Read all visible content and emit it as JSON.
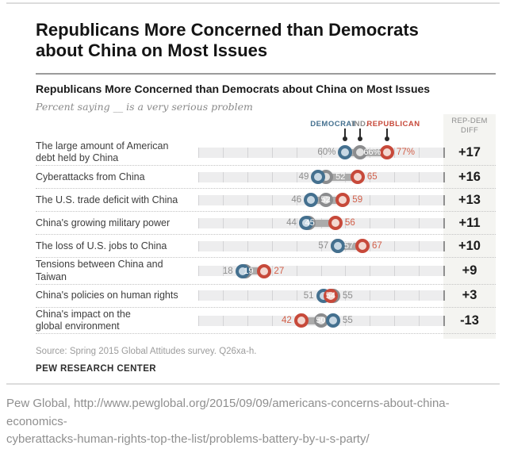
{
  "page": {
    "title": "Republicans More Concerned than Democrats about China on Most Issues",
    "caption_line1": "Pew Global, http://www.pewglobal.org/2015/09/09/americans-concerns-about-china-economics-",
    "caption_line2": "cyberattacks-human-rights-top-the-list/problems-battery-by-u-s-party/"
  },
  "chart": {
    "title": "Republicans More Concerned than Democrats about China on Most Issues",
    "subtitle": "Percent saying __ is a very serious problem",
    "legend": [
      {
        "party": "dem",
        "label": "DEMOCRAT",
        "at": 60
      },
      {
        "party": "ind",
        "label": "IND.",
        "at": 66
      },
      {
        "party": "rep",
        "label": "REPUBLICAN",
        "at": 77
      }
    ],
    "diff_header_lines": [
      "REP-DEM",
      "DIFF"
    ],
    "source": "Source: Spring 2015 Global Attitudes survey. Q26xa-h.",
    "branding": "PEW RESEARCH CENTER"
  },
  "chart_data": {
    "type": "dot-plot",
    "title": "Republicans More Concerned than Democrats about China on Most Issues",
    "subtitle": "Percent saying __ is a very serious problem",
    "xlim": [
      0,
      100
    ],
    "gridline_step": 10,
    "legend_position": "top",
    "series_names": [
      "Democrat",
      "Independent",
      "Republican"
    ],
    "colors": {
      "democrat_stroke": "#44708f",
      "democrat_fill": "#c8d8e4",
      "independent_stroke": "#8b8c8e",
      "independent_fill": "#e0e0e0",
      "republican_stroke": "#c7493a",
      "republican_fill": "#f3d8d1",
      "connector": "#ababab",
      "track": "#ededee",
      "diff_column_bg": "#f4f4f1"
    },
    "rows": [
      {
        "category": "The large amount of American debt held by China",
        "label_lines": [
          "The large amount of American",
          "debt held by China"
        ],
        "democrat": 60,
        "independent": 66,
        "republican": 77,
        "diff": "+17",
        "labels": [
          {
            "text": "60%",
            "at": 60,
            "place": "left",
            "color": "gray"
          },
          {
            "text": "66%",
            "at": 71,
            "place": "center",
            "color": "white"
          },
          {
            "text": "77%",
            "at": 77,
            "place": "right",
            "color": "red"
          }
        ]
      },
      {
        "category": "Cyberattacks from China",
        "label_lines": [
          "Cyberattacks from China"
        ],
        "democrat": 49,
        "independent": 52,
        "republican": 65,
        "diff": "+16",
        "labels": [
          {
            "text": "49",
            "at": 49,
            "place": "left",
            "color": "gray"
          },
          {
            "text": "52",
            "at": 58,
            "place": "center",
            "color": "white"
          },
          {
            "text": "65",
            "at": 65,
            "place": "right",
            "color": "red"
          }
        ]
      },
      {
        "category": "The U.S. trade deficit with China",
        "label_lines": [
          "The U.S. trade deficit with China"
        ],
        "democrat": 46,
        "independent": 52,
        "republican": 59,
        "diff": "+13",
        "labels": [
          {
            "text": "46",
            "at": 46,
            "place": "left",
            "color": "gray"
          },
          {
            "text": "52",
            "at": 52,
            "place": "center",
            "color": "white"
          },
          {
            "text": "59",
            "at": 59,
            "place": "right",
            "color": "red"
          }
        ]
      },
      {
        "category": "China's growing military power",
        "label_lines": [
          "China's growing military power"
        ],
        "democrat": 44,
        "independent": 45,
        "republican": 56,
        "diff": "+11",
        "labels": [
          {
            "text": "44",
            "at": 44,
            "place": "left",
            "color": "gray"
          },
          {
            "text": "45",
            "at": 45.5,
            "place": "center",
            "color": "white"
          },
          {
            "text": "56",
            "at": 56,
            "place": "right",
            "color": "red"
          }
        ]
      },
      {
        "category": "The loss of U.S. jobs to China",
        "label_lines": [
          "The loss of U.S. jobs to China"
        ],
        "democrat": 57,
        "independent": 57,
        "republican": 67,
        "diff": "+10",
        "labels": [
          {
            "text": "57",
            "at": 57,
            "place": "left",
            "color": "gray"
          },
          {
            "text": "57",
            "at": 61.5,
            "place": "center",
            "color": "white"
          },
          {
            "text": "67",
            "at": 67,
            "place": "right",
            "color": "red"
          }
        ]
      },
      {
        "category": "Tensions between China and Taiwan",
        "label_lines": [
          "Tensions between China and Taiwan"
        ],
        "democrat": 18,
        "independent": 19,
        "republican": 27,
        "diff": "+9",
        "labels": [
          {
            "text": "18",
            "at": 18,
            "place": "left",
            "color": "gray"
          },
          {
            "text": "19",
            "at": 20.5,
            "place": "center",
            "color": "white"
          },
          {
            "text": "27",
            "at": 27,
            "place": "right",
            "color": "red"
          }
        ]
      },
      {
        "category": "China's policies on human rights",
        "label_lines": [
          "China's policies on human rights"
        ],
        "democrat": 51,
        "independent": 55,
        "republican": 54,
        "diff": "+3",
        "labels": [
          {
            "text": "51",
            "at": 51,
            "place": "left",
            "color": "gray"
          },
          {
            "text": "54",
            "at": 54,
            "place": "center",
            "color": "white"
          },
          {
            "text": "55",
            "at": 55,
            "place": "right",
            "color": "gray"
          }
        ]
      },
      {
        "category": "China's impact on the global environment",
        "label_lines": [
          "China's impact on the",
          "global environment"
        ],
        "democrat": 55,
        "independent": 50,
        "republican": 42,
        "diff": "-13",
        "labels": [
          {
            "text": "42",
            "at": 42,
            "place": "left",
            "color": "red"
          },
          {
            "text": "50",
            "at": 50,
            "place": "center",
            "color": "white"
          },
          {
            "text": "55",
            "at": 55,
            "place": "right",
            "color": "gray"
          }
        ]
      }
    ]
  }
}
